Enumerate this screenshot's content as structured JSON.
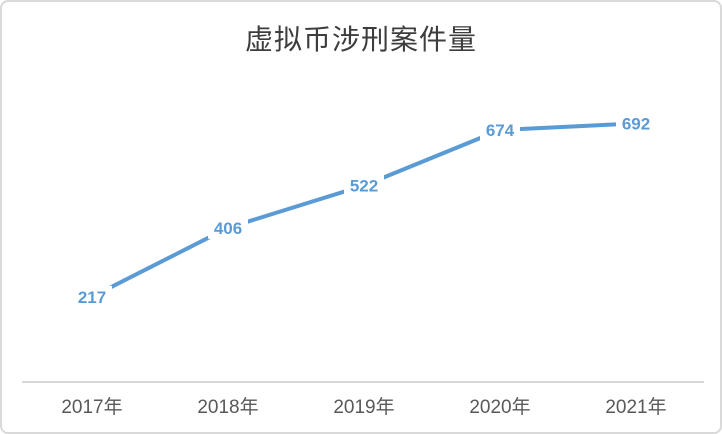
{
  "chart_data": {
    "type": "line",
    "title": "虚拟币涉刑案件量",
    "categories": [
      "2017年",
      "2018年",
      "2019年",
      "2020年",
      "2021年"
    ],
    "values": [
      217,
      406,
      522,
      674,
      692
    ],
    "data_labels": [
      217,
      406,
      522,
      674,
      692
    ],
    "ylim": [
      0,
      800
    ],
    "grid": false,
    "legend": "none",
    "y_axis_visible": false,
    "x_axis_visible": true,
    "line_color": "#5B9BD5",
    "data_label_color": "#5B9BD5",
    "axis_line_color": "#d6d6d6",
    "tick_label_color": "#595959",
    "title_color": "#3d3d3d",
    "background_color": "#ffffff",
    "border_color": "#d9d9d9"
  }
}
